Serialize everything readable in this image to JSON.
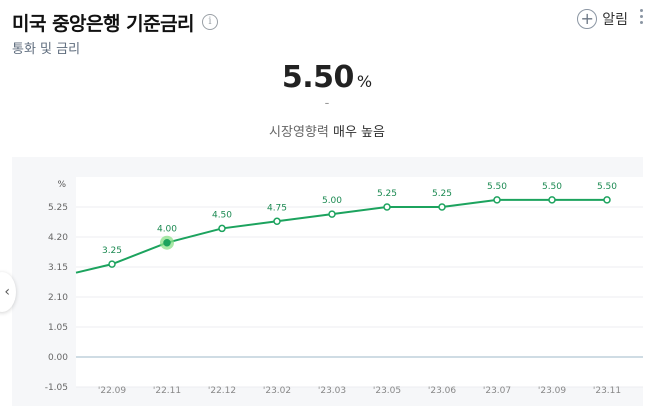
{
  "header": {
    "title": "미국 중앙은행 기준금리",
    "info_icon": "i",
    "subtitle": "통화 및 금리",
    "alarm_label": "알림"
  },
  "summary": {
    "value": "5.50",
    "unit": "%",
    "change": "-",
    "influence_prefix": "시장영향력",
    "influence_level": "매우",
    "influence_value": "높음"
  },
  "colors": {
    "line": "#1ca35e",
    "highlight": "#8be08a"
  },
  "chart_data": {
    "type": "line",
    "ylabel": "%",
    "y_ticks": [
      "5.25",
      "4.20",
      "3.15",
      "2.10",
      "1.05",
      "0.00",
      "-1.05"
    ],
    "ylim": [
      -1.05,
      6.3
    ],
    "categories": [
      "'22.09",
      "'22.11",
      "'22.12",
      "'23.02",
      "'23.03",
      "'23.05",
      "'23.06",
      "'23.07",
      "'23.09",
      "'23.11"
    ],
    "values": [
      3.25,
      4.0,
      4.5,
      4.75,
      5.0,
      5.25,
      5.25,
      5.5,
      5.5,
      5.5
    ],
    "labels": [
      "3.25",
      "4.00",
      "4.50",
      "4.75",
      "5.00",
      "5.25",
      "5.25",
      "5.50",
      "5.50",
      "5.50"
    ],
    "highlight_index": 1,
    "grid": true
  }
}
